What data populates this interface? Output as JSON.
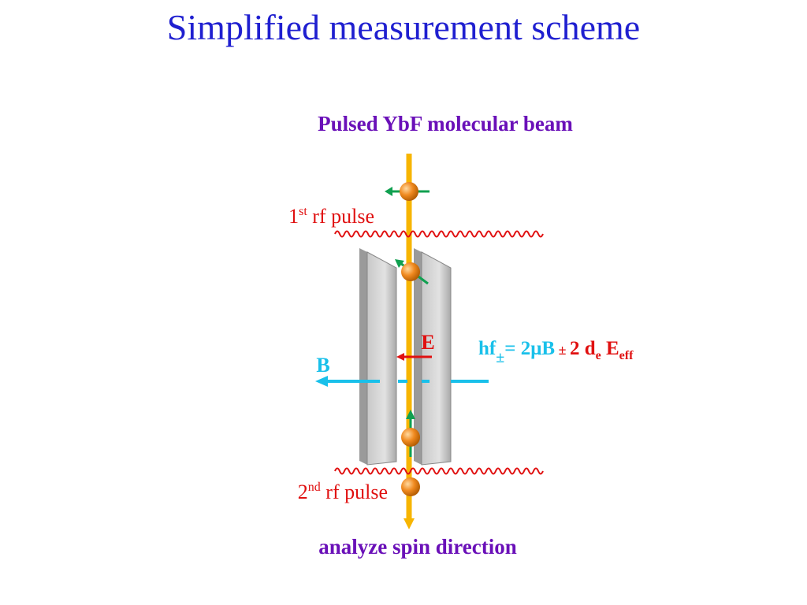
{
  "title": "Simplified measurement scheme",
  "beam_label": "Pulsed YbF molecular beam",
  "first_pulse": {
    "number": "1",
    "suffix": "st",
    "text": " rf pulse"
  },
  "second_pulse": {
    "number": "2",
    "suffix": "nd",
    "text": " rf pulse"
  },
  "field_e": "E",
  "field_b": "B",
  "formula": {
    "hf": "hf",
    "hf_sub": "±",
    "zeeman": "= 2μB",
    "pm": " ± ",
    "edm": "2 d",
    "edm_sub": "e",
    "field": " E",
    "field_sub": "eff"
  },
  "analyze_label": "analyze spin direction"
}
